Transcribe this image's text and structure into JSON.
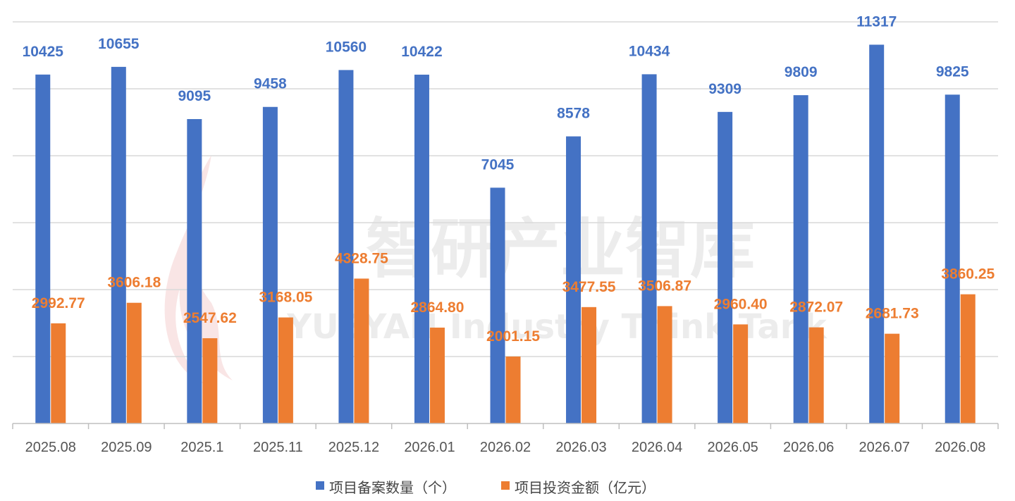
{
  "colors": {
    "series_count": "#4472C4",
    "series_amount": "#ED7D31",
    "grid": "#D9D9D9",
    "axis": "#BFBFBF",
    "tick_text": "#555555",
    "legend_text": "#444444",
    "watermark": "#E6E6E6",
    "watermark_flame": "#F6DADA"
  },
  "watermark": {
    "cn": "智研产业智库",
    "en": "YUEYAN Industry Think Tank"
  },
  "chart_data": {
    "type": "bar",
    "categories": [
      "2025.08",
      "2025.09",
      "2025.1",
      "2025.11",
      "2025.12",
      "2026.01",
      "2026.02",
      "2026.03",
      "2026.04",
      "2026.05",
      "2026.06",
      "2026.07",
      "2026.08"
    ],
    "series": [
      {
        "name": "项目备案数量（个）",
        "values": [
          10425,
          10655,
          9095,
          9458,
          10560,
          10422,
          7045,
          8578,
          10434,
          9309,
          9809,
          11317,
          9825
        ],
        "labels": [
          "10425",
          "10655",
          "9095",
          "9458",
          "10560",
          "10422",
          "7045",
          "8578",
          "10434",
          "9309",
          "9809",
          "11317",
          "9825"
        ]
      },
      {
        "name": "项目投资金额（亿元）",
        "values": [
          2992.77,
          3606.18,
          2547.62,
          3168.05,
          4328.75,
          2864.8,
          2001.15,
          3477.55,
          3506.87,
          2960.4,
          2872.07,
          2681.73,
          3860.25
        ],
        "labels": [
          "2992.77",
          "3606.18",
          "2547.62",
          "3168.05",
          "4328.75",
          "2864.80",
          "2001.15",
          "3477.55",
          "3506.87",
          "2960.40",
          "2872.07",
          "2681.73",
          "3860.25"
        ]
      }
    ],
    "ylim": [
      0,
      12000
    ],
    "gridlines": [
      0,
      2000,
      4000,
      6000,
      8000,
      10000,
      12000
    ],
    "grid": true,
    "legend_position": "bottom-center",
    "title": "",
    "xlabel": "",
    "ylabel": ""
  }
}
